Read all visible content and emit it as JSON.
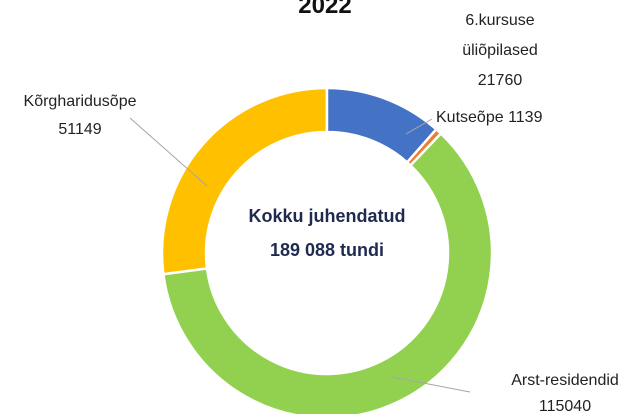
{
  "chart_data": {
    "type": "donut",
    "title": "2022",
    "center_text": "Kokku juhendatud 189 088 tundi",
    "categories": [
      "6.kursuse üliõpilased",
      "Kutseõpe",
      "Arst-residendid",
      "Kõrgharidusõpe"
    ],
    "values": [
      21760,
      1139,
      115040,
      51149
    ],
    "colors": [
      "#4472c4",
      "#ed7d31",
      "#92d050",
      "#ffc000"
    ]
  }
}
